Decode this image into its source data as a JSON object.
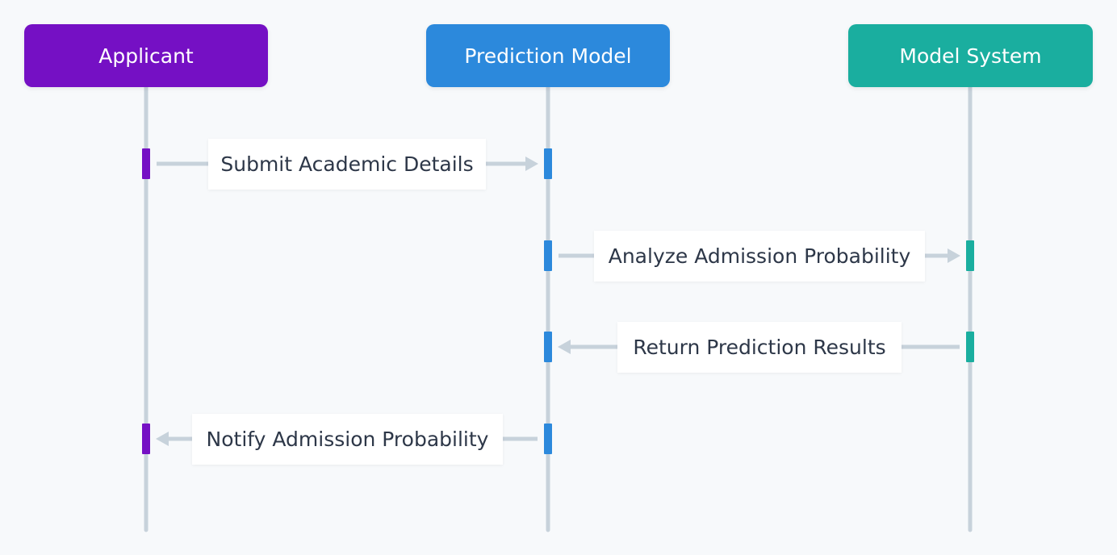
{
  "colors": {
    "background": "#f7f9fb",
    "lifeline": "#c7d2db",
    "arrow": "#c7d2db",
    "label_bg": "#ffffff",
    "label_text": "#2d3748"
  },
  "actors": [
    {
      "id": "applicant",
      "label": "Applicant",
      "color": "#7510c4"
    },
    {
      "id": "prediction-model",
      "label": "Prediction Model",
      "color": "#2c89dc"
    },
    {
      "id": "model-system",
      "label": "Model System",
      "color": "#1aae9f"
    }
  ],
  "messages": [
    {
      "from": "applicant",
      "to": "prediction-model",
      "label": "Submit Academic Details"
    },
    {
      "from": "prediction-model",
      "to": "model-system",
      "label": "Analyze Admission Probability"
    },
    {
      "from": "model-system",
      "to": "prediction-model",
      "label": "Return Prediction Results"
    },
    {
      "from": "prediction-model",
      "to": "applicant",
      "label": "Notify Admission Probability"
    }
  ]
}
